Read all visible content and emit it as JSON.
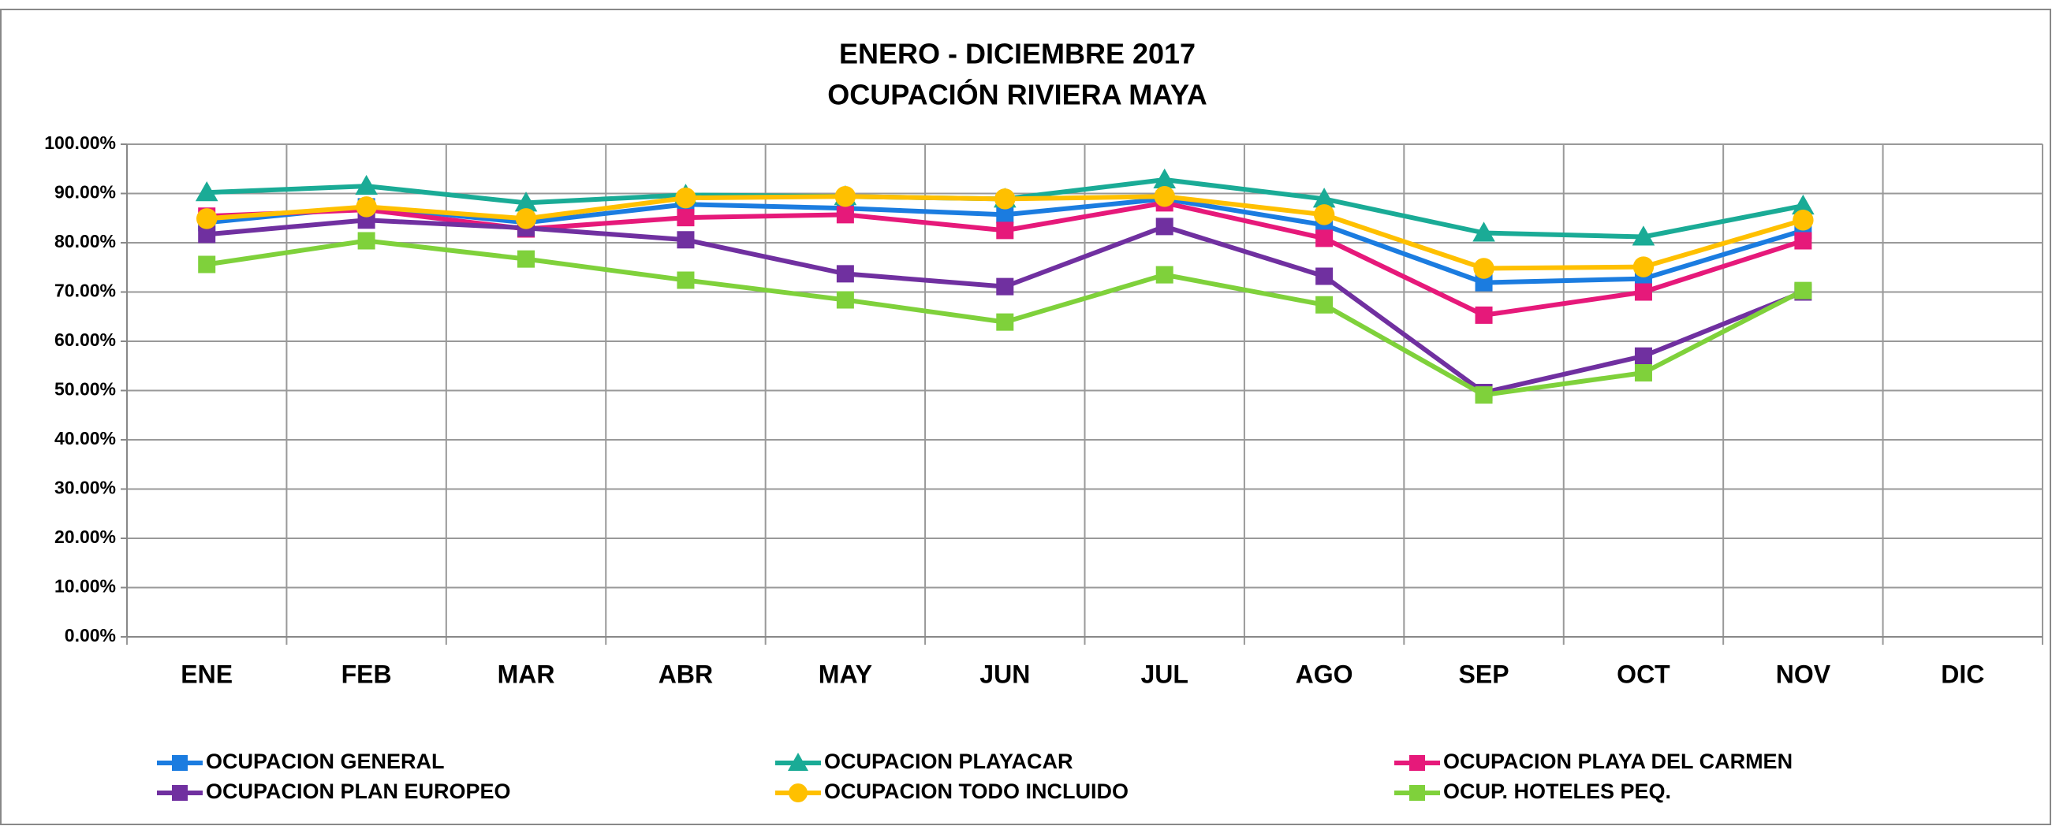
{
  "chart_data": {
    "type": "line",
    "title": "ENERO - DICIEMBRE 2017",
    "subtitle": "OCUPACIÓN RIVIERA MAYA",
    "categories": [
      "ENE",
      "FEB",
      "MAR",
      "ABR",
      "MAY",
      "JUN",
      "JUL",
      "AGO",
      "SEP",
      "OCT",
      "NOV",
      "DIC"
    ],
    "series": [
      {
        "name": "OCUPACION GENERAL",
        "color": "#1b7ce0",
        "marker": "square",
        "values": [
          84.1,
          87.3,
          84.1,
          87.8,
          87.0,
          85.7,
          88.9,
          83.6,
          71.9,
          72.7,
          82.5,
          null
        ]
      },
      {
        "name": "OCUPACION PLAYACAR",
        "color": "#1aab96",
        "marker": "triangle",
        "values": [
          90.2,
          91.5,
          88.1,
          89.7,
          89.4,
          88.9,
          92.8,
          88.9,
          82.0,
          81.2,
          87.5,
          null
        ]
      },
      {
        "name": "OCUPACION PLAYA DEL CARMEN",
        "color": "#e6197a",
        "marker": "square",
        "values": [
          85.4,
          86.7,
          82.8,
          85.1,
          85.7,
          82.5,
          88.1,
          80.9,
          65.3,
          70.0,
          80.4,
          null
        ]
      },
      {
        "name": "OCUPACION PLAN EUROPEO",
        "color": "#7030a0",
        "marker": "square",
        "values": [
          81.7,
          84.6,
          83.0,
          80.6,
          73.7,
          71.1,
          83.3,
          73.2,
          49.6,
          57.0,
          70.0,
          null
        ]
      },
      {
        "name": "OCUPACION TODO INCLUIDO",
        "color": "#ffc000",
        "marker": "circle",
        "values": [
          84.9,
          87.3,
          84.9,
          89.1,
          89.4,
          88.9,
          89.4,
          85.7,
          74.8,
          75.1,
          84.6,
          null
        ]
      },
      {
        "name": "OCUP. HOTELES PEQ.",
        "color": "#7fd13b",
        "marker": "square",
        "values": [
          75.6,
          80.4,
          76.7,
          72.4,
          68.4,
          63.9,
          73.5,
          67.4,
          49.1,
          53.6,
          70.3,
          null
        ]
      }
    ],
    "ylim": [
      0,
      100
    ],
    "yticks": [
      {
        "value": 0,
        "label": "0.00%"
      },
      {
        "value": 10,
        "label": "10.00%"
      },
      {
        "value": 20,
        "label": "20.00%"
      },
      {
        "value": 30,
        "label": "30.00%"
      },
      {
        "value": 40,
        "label": "40.00%"
      },
      {
        "value": 50,
        "label": "50.00%"
      },
      {
        "value": 60,
        "label": "60.00%"
      },
      {
        "value": 70,
        "label": "70.00%"
      },
      {
        "value": 80,
        "label": "80.00%"
      },
      {
        "value": 90,
        "label": "90.00%"
      },
      {
        "value": 100,
        "label": "100.00%"
      }
    ],
    "grid": true,
    "legend": "bottom"
  }
}
